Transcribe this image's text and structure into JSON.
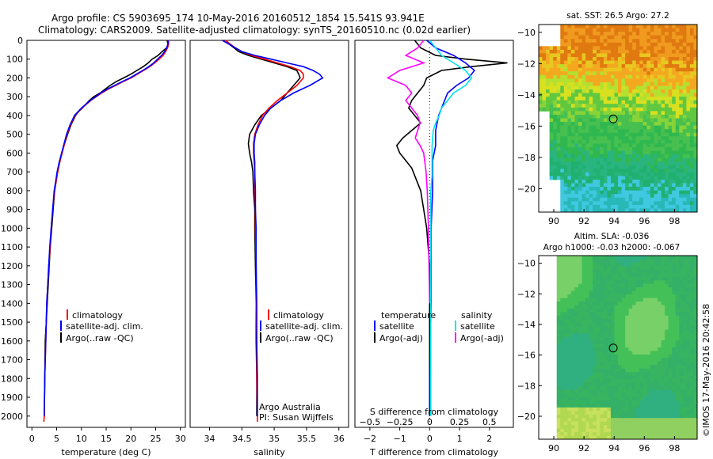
{
  "header": {
    "line1": "Argo profile: CS 5903695_174 10-May-2016 20160512_1854 15.541S 93.941E",
    "line2": "Climatology: CARS2009. Satellite-adjusted climatology: synTS_20160510.nc (0.02d earlier)"
  },
  "credits": {
    "line1": "Argo Australia",
    "line2": "PI: Susan Wijffels",
    "imos": "©IMOS 17-May-2016 20:42:58"
  },
  "depth_ticks": [
    0,
    100,
    200,
    300,
    400,
    500,
    600,
    700,
    800,
    900,
    1000,
    1100,
    1200,
    1300,
    1400,
    1500,
    1600,
    1700,
    1800,
    1900,
    2000
  ],
  "chart_data": [
    {
      "type": "line",
      "xlabel": "temperature (deg C)",
      "xlim": [
        -1,
        31
      ],
      "xticks": [
        0,
        5,
        10,
        15,
        20,
        25,
        30
      ],
      "ylim": [
        2060,
        0
      ],
      "colors": {
        "climatology": "#ff0000",
        "satellite": "#0000ff",
        "argo": "#000000"
      },
      "legend": [
        "climatology",
        "satellite-adj. clim.",
        "Argo(..raw -QC)"
      ],
      "series": [
        {
          "key": "argo",
          "x": [
            27.3,
            27.5,
            27.2,
            26.3,
            25.5,
            24.3,
            23.5,
            22.5,
            21.2,
            20.0,
            18.5,
            17.0,
            15.8,
            14.8,
            13.8,
            12.5,
            11.6,
            10.9,
            10.2,
            9.4,
            8.8,
            7.9,
            7.2,
            6.6,
            6.0,
            5.6,
            5.2,
            4.9,
            4.6,
            4.3,
            4.0,
            3.7,
            3.5,
            3.3,
            3.1,
            2.9,
            2.7,
            2.6,
            2.5
          ],
          "y": [
            0,
            20,
            40,
            60,
            80,
            100,
            120,
            140,
            160,
            180,
            200,
            220,
            240,
            260,
            280,
            300,
            320,
            340,
            360,
            380,
            400,
            450,
            500,
            550,
            600,
            650,
            700,
            750,
            800,
            900,
            1000,
            1100,
            1200,
            1300,
            1400,
            1500,
            1600,
            1800,
            2000
          ]
        },
        {
          "key": "climatology",
          "x": [
            27.6,
            27.6,
            27.4,
            27.0,
            26.5,
            25.7,
            24.8,
            23.8,
            22.6,
            21.3,
            20.0,
            18.4,
            16.9,
            15.4,
            14.1,
            13.0,
            11.9,
            11.0,
            10.1,
            9.4,
            8.7,
            7.8,
            7.1,
            6.6,
            6.1,
            5.6,
            5.2,
            4.9,
            4.6,
            4.2,
            3.9,
            3.7,
            3.4,
            3.2,
            3.0,
            2.9,
            2.8,
            2.6,
            2.5,
            2.4
          ],
          "y": [
            0,
            20,
            40,
            60,
            80,
            100,
            120,
            140,
            160,
            180,
            200,
            220,
            240,
            260,
            280,
            300,
            320,
            340,
            360,
            380,
            400,
            450,
            500,
            550,
            600,
            650,
            700,
            750,
            800,
            900,
            1000,
            1100,
            1200,
            1300,
            1400,
            1500,
            1600,
            1800,
            2000,
            2030
          ]
        },
        {
          "key": "satellite",
          "x": [
            27.5,
            27.5,
            27.2,
            26.8,
            26.2,
            25.4,
            24.6,
            23.6,
            22.4,
            21.1,
            19.8,
            18.2,
            16.7,
            15.2,
            13.9,
            12.9,
            11.8,
            10.9,
            10.0,
            9.3,
            8.6,
            7.7,
            7.0,
            6.5,
            6.0,
            5.5,
            5.1,
            4.8,
            4.5,
            4.2,
            3.9,
            3.6,
            3.4,
            3.2,
            3.0,
            2.9,
            2.8,
            2.6,
            2.5
          ],
          "y": [
            0,
            20,
            40,
            60,
            80,
            100,
            120,
            140,
            160,
            180,
            200,
            220,
            240,
            260,
            280,
            300,
            320,
            340,
            360,
            380,
            400,
            450,
            500,
            550,
            600,
            650,
            700,
            750,
            800,
            900,
            1000,
            1100,
            1200,
            1300,
            1400,
            1500,
            1600,
            1800,
            2000
          ]
        }
      ]
    },
    {
      "type": "line",
      "xlabel": "salinity",
      "xlim": [
        33.7,
        36.15
      ],
      "xticks": [
        34,
        34.5,
        35,
        35.5,
        36
      ],
      "ylim": [
        2060,
        0
      ],
      "colors": {
        "climatology": "#ff0000",
        "satellite": "#0000ff",
        "argo": "#000000"
      },
      "legend": [
        "climatology",
        "satellite-adj. clim.",
        "Argo(..raw -QC)"
      ],
      "series": [
        {
          "key": "argo",
          "x": [
            34.2,
            34.3,
            34.38,
            34.45,
            34.6,
            34.8,
            35.0,
            35.2,
            35.35,
            35.38,
            35.4,
            35.3,
            35.2,
            35.1,
            34.95,
            34.8,
            34.7,
            34.62,
            34.6,
            34.62,
            34.65,
            34.67,
            34.68,
            34.7,
            34.7,
            34.71,
            34.72,
            34.72,
            34.73,
            34.73
          ],
          "y": [
            0,
            20,
            40,
            60,
            80,
            100,
            120,
            140,
            160,
            180,
            200,
            240,
            280,
            320,
            360,
            400,
            450,
            500,
            550,
            600,
            650,
            700,
            800,
            900,
            1000,
            1200,
            1400,
            1600,
            1800,
            2000
          ]
        },
        {
          "key": "climatology",
          "x": [
            34.25,
            34.32,
            34.4,
            34.5,
            34.65,
            34.85,
            35.05,
            35.25,
            35.4,
            35.45,
            35.45,
            35.35,
            35.2,
            35.05,
            34.92,
            34.82,
            34.75,
            34.7,
            34.68,
            34.68,
            34.69,
            34.7,
            34.7,
            34.71,
            34.71,
            34.72,
            34.72,
            34.73,
            34.73,
            34.74,
            34.74
          ],
          "y": [
            0,
            20,
            40,
            60,
            80,
            100,
            120,
            140,
            160,
            180,
            200,
            240,
            280,
            320,
            360,
            400,
            450,
            500,
            550,
            600,
            650,
            700,
            800,
            900,
            1000,
            1200,
            1400,
            1600,
            1800,
            2000,
            2030
          ]
        },
        {
          "key": "satellite",
          "x": [
            34.2,
            34.3,
            34.4,
            34.5,
            34.7,
            34.95,
            35.2,
            35.45,
            35.6,
            35.7,
            35.75,
            35.55,
            35.3,
            35.1,
            34.95,
            34.85,
            34.77,
            34.71,
            34.69,
            34.69,
            34.7,
            34.7,
            34.71,
            34.71,
            34.72,
            34.72,
            34.73,
            34.73,
            34.74,
            34.74
          ],
          "y": [
            0,
            20,
            40,
            60,
            80,
            100,
            120,
            140,
            160,
            180,
            200,
            240,
            280,
            320,
            360,
            400,
            450,
            500,
            550,
            600,
            650,
            700,
            800,
            900,
            1000,
            1200,
            1400,
            1600,
            1800,
            2000
          ]
        }
      ]
    },
    {
      "type": "line",
      "xlabel": "T difference from climatology",
      "x2label": "S difference from climatology",
      "xlim": [
        -2.5,
        2.8
      ],
      "xticks": [
        -2,
        -1,
        0,
        1,
        2
      ],
      "x2lim": [
        -0.625,
        0.7
      ],
      "x2ticks": [
        -0.5,
        -0.25,
        0,
        0.25,
        0.5
      ],
      "ylim": [
        2060,
        0
      ],
      "colors": {
        "temp_satellite": "#0000ff",
        "temp_argo": "#000000",
        "sal_satellite": "#00e5ee",
        "sal_argo": "#ff00ff"
      },
      "legend_temp_title": "temperature",
      "legend_sal_title": "salinity",
      "legend": [
        "satellite",
        "Argo(-adj)",
        "satellite",
        "Argo(-adj)"
      ],
      "series": [
        {
          "key": "temp_argo",
          "axis": "T",
          "x": [
            -0.5,
            -0.3,
            0.2,
            1.2,
            2.6,
            1.4,
            0.4,
            -0.1,
            -0.2,
            -0.4,
            -0.6,
            -0.7,
            -0.5,
            -0.3,
            -0.6,
            -0.9,
            -1.1,
            -1.0,
            -0.8,
            -0.6,
            -0.5,
            -0.4,
            -0.3,
            -0.2,
            -0.1,
            0.0,
            0.0,
            0.0,
            0.0
          ],
          "y": [
            0,
            40,
            80,
            100,
            120,
            140,
            160,
            200,
            240,
            280,
            320,
            360,
            400,
            440,
            480,
            520,
            560,
            600,
            640,
            680,
            720,
            760,
            800,
            900,
            1000,
            1200,
            1400,
            1800,
            2000
          ]
        },
        {
          "key": "temp_satellite",
          "axis": "T",
          "x": [
            -0.1,
            0.2,
            0.8,
            1.2,
            1.5,
            1.3,
            0.9,
            0.6,
            0.5,
            0.4,
            0.3,
            0.2,
            0.2,
            0.1,
            0.1,
            0.1,
            0.05,
            0.05,
            0.0,
            0.0
          ],
          "y": [
            0,
            40,
            80,
            120,
            160,
            200,
            240,
            280,
            320,
            360,
            400,
            480,
            560,
            640,
            720,
            800,
            1000,
            1400,
            1800,
            2000
          ]
        },
        {
          "key": "sal_argo",
          "axis": "S",
          "x": [
            -0.05,
            -0.1,
            -0.2,
            -0.05,
            -0.25,
            -0.35,
            -0.2,
            -0.15,
            -0.2,
            -0.15,
            -0.1,
            -0.08,
            -0.1,
            -0.12,
            -0.08,
            -0.05,
            -0.03,
            -0.02,
            -0.01,
            0.0
          ],
          "y": [
            0,
            40,
            80,
            120,
            160,
            200,
            240,
            280,
            320,
            360,
            400,
            440,
            480,
            520,
            560,
            600,
            700,
            800,
            1000,
            1400
          ]
        },
        {
          "key": "sal_satellite",
          "axis": "S",
          "x": [
            0.0,
            0.05,
            0.1,
            0.2,
            0.3,
            0.35,
            0.3,
            0.2,
            0.15,
            0.1,
            0.08,
            0.05,
            0.03,
            0.02,
            0.02,
            0.02,
            0.01,
            0.01,
            0.01,
            0.01
          ],
          "y": [
            0,
            40,
            80,
            120,
            160,
            200,
            240,
            280,
            320,
            360,
            400,
            440,
            480,
            560,
            640,
            720,
            800,
            1000,
            1400,
            2000
          ]
        }
      ]
    },
    {
      "type": "heatmap",
      "title": "sat. SST: 26.5 Argo: 27.2",
      "xlim": [
        89,
        99.5
      ],
      "ylim": [
        -21.5,
        -9.5
      ],
      "xticks": [
        90,
        92,
        94,
        96,
        98
      ],
      "yticks": [
        -10,
        -12,
        -14,
        -16,
        -18,
        -20
      ],
      "marker": {
        "lon": 93.94,
        "lat": -15.54
      }
    },
    {
      "type": "heatmap",
      "title": "Altim. SLA: -0.036",
      "subtitle": "Argo h1000: -0.03 h2000: -0.067",
      "xlim": [
        89,
        99.5
      ],
      "ylim": [
        -21.5,
        -9.5
      ],
      "xticks": [
        90,
        92,
        94,
        96,
        98
      ],
      "yticks": [
        -10,
        -12,
        -14,
        -16,
        -18,
        -20
      ],
      "marker": {
        "lon": 93.94,
        "lat": -15.54
      }
    }
  ]
}
